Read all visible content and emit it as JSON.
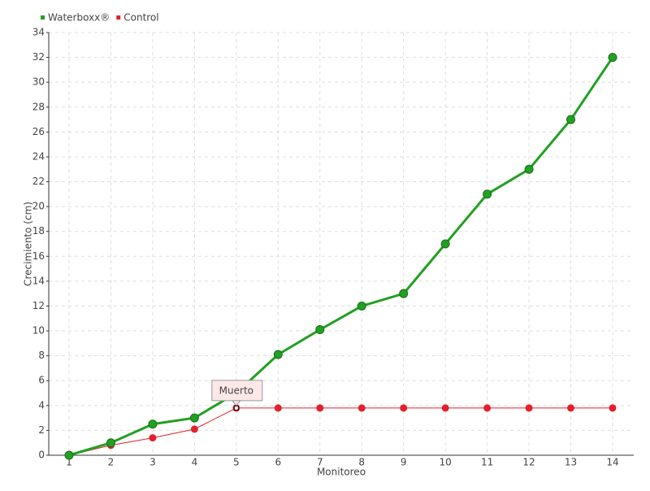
{
  "chart_data": {
    "type": "line",
    "x_label": "Monitoreo",
    "y_label": "Crecimiento (cm)",
    "categories": [
      "1",
      "2",
      "3",
      "4",
      "5",
      "6",
      "7",
      "8",
      "9",
      "10",
      "11",
      "12",
      "13",
      "14"
    ],
    "series": [
      {
        "name": "Waterboxx®",
        "color": "#22a022",
        "values": [
          0,
          1,
          2.5,
          3,
          5,
          8.1,
          10.1,
          12,
          13,
          17,
          21,
          23,
          27,
          32
        ]
      },
      {
        "name": "Control",
        "color": "#e3202c",
        "values": [
          0,
          0.8,
          1.4,
          2.1,
          3.8,
          3.8,
          3.8,
          3.8,
          3.8,
          3.8,
          3.8,
          3.8,
          3.8,
          3.8
        ]
      }
    ],
    "annotations": [
      {
        "text": "Muerto",
        "x": "5"
      }
    ],
    "ylim": [
      0,
      34
    ],
    "yticks": [
      0,
      2,
      4,
      6,
      8,
      10,
      12,
      14,
      16,
      18,
      20,
      22,
      24,
      26,
      28,
      30,
      32,
      34
    ],
    "grid": true,
    "legend": "top-left"
  }
}
